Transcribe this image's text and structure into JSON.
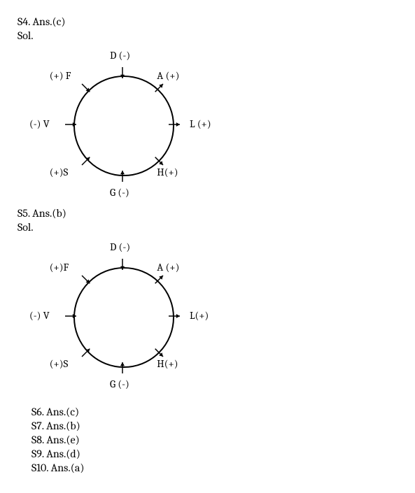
{
  "s4": {
    "header": "S4. Ans.(c)",
    "sol": "Sol.",
    "diagram": {
      "circle_color": "#000000",
      "circle_stroke": 2,
      "nodes": [
        {
          "label": "D (-)",
          "angle_deg": 90
        },
        {
          "label": "A (+)",
          "angle_deg": 45
        },
        {
          "label": "L (+)",
          "angle_deg": 0
        },
        {
          "label": "H(+)",
          "angle_deg": -45
        },
        {
          "label": "G (-)",
          "angle_deg": -90
        },
        {
          "label": "(+)S",
          "angle_deg": -135
        },
        {
          "label": "(-) V",
          "angle_deg": 180
        },
        {
          "label": "(+) F",
          "angle_deg": 135
        }
      ],
      "arrows": [
        {
          "angle_deg": 90,
          "dir": "in"
        },
        {
          "angle_deg": 45,
          "dir": "out"
        },
        {
          "angle_deg": 0,
          "dir": "out"
        },
        {
          "angle_deg": -45,
          "dir": "out"
        },
        {
          "angle_deg": -90,
          "dir": "in"
        },
        {
          "angle_deg": -135,
          "dir": "in"
        },
        {
          "angle_deg": 180,
          "dir": "in"
        },
        {
          "angle_deg": 135,
          "dir": "in"
        }
      ]
    }
  },
  "s5": {
    "header": "S5. Ans.(b)",
    "sol": "Sol.",
    "diagram": {
      "circle_color": "#000000",
      "circle_stroke": 2,
      "nodes": [
        {
          "label": "D (-)",
          "angle_deg": 90
        },
        {
          "label": "A (+)",
          "angle_deg": 45
        },
        {
          "label": "L(+)",
          "angle_deg": 0
        },
        {
          "label": "H(+)",
          "angle_deg": -45
        },
        {
          "label": "G (-)",
          "angle_deg": -90
        },
        {
          "label": "(+)S",
          "angle_deg": -135
        },
        {
          "label": "(-) V",
          "angle_deg": 180
        },
        {
          "label": "(+)F",
          "angle_deg": 135
        }
      ],
      "arrows": [
        {
          "angle_deg": 90,
          "dir": "in"
        },
        {
          "angle_deg": 45,
          "dir": "out"
        },
        {
          "angle_deg": 0,
          "dir": "out"
        },
        {
          "angle_deg": -45,
          "dir": "out"
        },
        {
          "angle_deg": -90,
          "dir": "in"
        },
        {
          "angle_deg": -135,
          "dir": "in"
        },
        {
          "angle_deg": 180,
          "dir": "in"
        },
        {
          "angle_deg": 135,
          "dir": "in"
        }
      ]
    }
  },
  "answers_block": [
    "S6. Ans.(c)",
    "S7. Ans.(b)",
    "S8. Ans.(e)",
    "S9. Ans.(d)",
    "S10. Ans.(a)"
  ]
}
